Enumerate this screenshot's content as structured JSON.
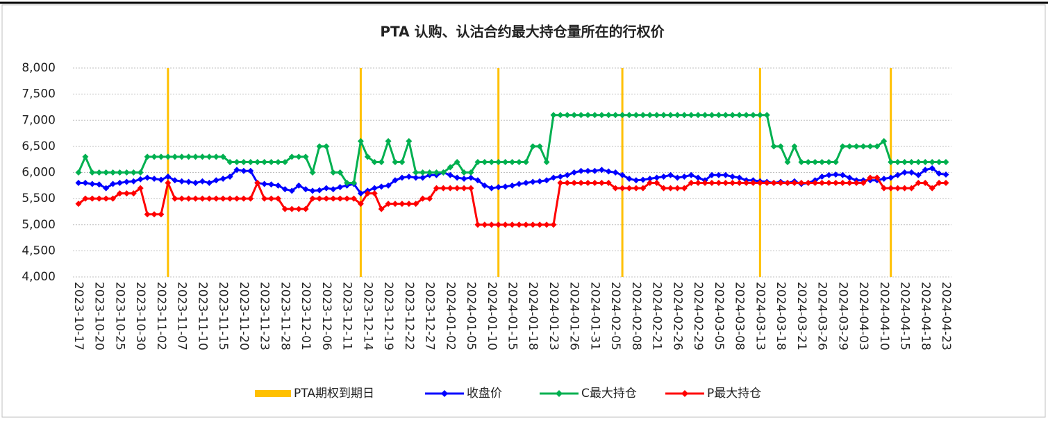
{
  "chart_data": {
    "type": "line",
    "title": "PTA 认购、认沽合约最大持仓量所在的行权价",
    "categories": [
      "2023-10-17",
      null,
      null,
      "2023-10-20",
      null,
      null,
      "2023-10-25",
      null,
      null,
      "2023-10-30",
      null,
      null,
      "2023-11-02",
      null,
      null,
      "2023-11-07",
      null,
      null,
      "2023-11-10",
      null,
      null,
      "2023-11-15",
      null,
      null,
      "2023-11-20",
      null,
      null,
      "2023-11-23",
      null,
      null,
      "2023-11-28",
      null,
      null,
      "2023-12-01",
      null,
      null,
      "2023-12-06",
      null,
      null,
      "2023-12-11",
      null,
      null,
      "2023-12-14",
      null,
      null,
      "2023-12-19",
      null,
      null,
      "2023-12-22",
      null,
      null,
      "2023-12-27",
      null,
      null,
      "2024-01-02",
      null,
      null,
      "2024-01-05",
      null,
      null,
      "2024-01-10",
      null,
      null,
      "2024-01-15",
      null,
      null,
      "2024-01-18",
      null,
      null,
      "2024-01-23",
      null,
      null,
      "2024-01-26",
      null,
      null,
      "2024-01-31",
      null,
      null,
      "2024-02-05",
      null,
      null,
      "2024-02-08",
      null,
      null,
      "2024-02-21",
      null,
      null,
      "2024-02-26",
      null,
      null,
      "2024-02-29",
      null,
      null,
      "2024-03-05",
      null,
      null,
      "2024-03-08",
      null,
      null,
      "2024-03-13",
      null,
      null,
      "2024-03-18",
      null,
      null,
      "2024-03-21",
      null,
      null,
      "2024-03-26",
      null,
      null,
      "2024-03-29",
      null,
      null,
      "2024-04-03",
      null,
      null,
      "2024-04-10",
      null,
      null,
      "2024-04-15",
      null,
      null,
      "2024-04-18",
      null,
      null,
      "2024-04-23"
    ],
    "series": [
      {
        "name": "PTA期权到期日",
        "type": "bar",
        "color": "#ffc000",
        "values": [
          null,
          null,
          null,
          null,
          null,
          null,
          null,
          null,
          null,
          null,
          null,
          null,
          null,
          8000,
          null,
          null,
          null,
          null,
          null,
          null,
          null,
          null,
          null,
          null,
          null,
          null,
          null,
          null,
          null,
          null,
          null,
          null,
          null,
          null,
          null,
          null,
          null,
          null,
          null,
          null,
          null,
          8000,
          null,
          null,
          null,
          null,
          null,
          null,
          null,
          null,
          null,
          null,
          null,
          null,
          null,
          null,
          null,
          null,
          null,
          null,
          null,
          8000,
          null,
          null,
          null,
          null,
          null,
          null,
          null,
          null,
          null,
          null,
          null,
          null,
          null,
          null,
          null,
          null,
          null,
          8000,
          null,
          null,
          null,
          null,
          null,
          null,
          null,
          null,
          null,
          null,
          null,
          null,
          null,
          null,
          null,
          null,
          null,
          null,
          null,
          8000,
          null,
          null,
          null,
          null,
          null,
          null,
          null,
          null,
          null,
          null,
          null,
          null,
          null,
          null,
          null,
          null,
          null,
          null,
          8000,
          null,
          null,
          null,
          null,
          null,
          null,
          null,
          null
        ]
      },
      {
        "name": "收盘价",
        "type": "line",
        "color": "#0000ff",
        "values": [
          5800,
          5800,
          5780,
          5770,
          5700,
          5780,
          5800,
          5820,
          5830,
          5870,
          5900,
          5880,
          5860,
          5920,
          5850,
          5830,
          5820,
          5800,
          5830,
          5800,
          5850,
          5880,
          5920,
          6050,
          6030,
          6030,
          5800,
          5780,
          5770,
          5750,
          5680,
          5650,
          5750,
          5680,
          5650,
          5660,
          5700,
          5680,
          5720,
          5750,
          5780,
          5600,
          5650,
          5700,
          5730,
          5750,
          5850,
          5900,
          5920,
          5900,
          5900,
          5950,
          5950,
          6000,
          5950,
          5900,
          5880,
          5900,
          5850,
          5750,
          5700,
          5720,
          5730,
          5750,
          5780,
          5800,
          5820,
          5830,
          5850,
          5900,
          5920,
          5950,
          6000,
          6030,
          6030,
          6030,
          6050,
          6020,
          6000,
          5950,
          5880,
          5850,
          5860,
          5880,
          5900,
          5920,
          5950,
          5900,
          5920,
          5950,
          5900,
          5850,
          5950,
          5950,
          5950,
          5920,
          5900,
          5850,
          5850,
          5830,
          5820,
          5800,
          5820,
          5800,
          5830,
          5780,
          5800,
          5850,
          5920,
          5950,
          5960,
          5950,
          5900,
          5850,
          5850,
          5850,
          5850,
          5880,
          5900,
          5950,
          6000,
          6000,
          5950,
          6050,
          6080,
          5980,
          5960
        ]
      },
      {
        "name": "C最大持仓",
        "type": "line",
        "color": "#00b050",
        "values": [
          6000,
          6300,
          6000,
          6000,
          6000,
          6000,
          6000,
          6000,
          6000,
          6000,
          6300,
          6300,
          6300,
          6300,
          6300,
          6300,
          6300,
          6300,
          6300,
          6300,
          6300,
          6300,
          6200,
          6200,
          6200,
          6200,
          6200,
          6200,
          6200,
          6200,
          6200,
          6300,
          6300,
          6300,
          6000,
          6500,
          6500,
          6000,
          6000,
          5800,
          5800,
          6600,
          6300,
          6200,
          6200,
          6600,
          6200,
          6200,
          6600,
          6000,
          6000,
          6000,
          6000,
          6000,
          6100,
          6200,
          6000,
          6000,
          6200,
          6200,
          6200,
          6200,
          6200,
          6200,
          6200,
          6200,
          6500,
          6500,
          6200,
          7100,
          7100,
          7100,
          7100,
          7100,
          7100,
          7100,
          7100,
          7100,
          7100,
          7100,
          7100,
          7100,
          7100,
          7100,
          7100,
          7100,
          7100,
          7100,
          7100,
          7100,
          7100,
          7100,
          7100,
          7100,
          7100,
          7100,
          7100,
          7100,
          7100,
          7100,
          7100,
          6500,
          6500,
          6200,
          6500,
          6200,
          6200,
          6200,
          6200,
          6200,
          6200,
          6500,
          6500,
          6500,
          6500,
          6500,
          6500,
          6600,
          6200,
          6200,
          6200,
          6200,
          6200,
          6200,
          6200,
          6200,
          6200
        ]
      },
      {
        "name": "P最大持仓",
        "type": "line",
        "color": "#ff0000",
        "values": [
          5400,
          5500,
          5500,
          5500,
          5500,
          5500,
          5600,
          5600,
          5600,
          5700,
          5200,
          5200,
          5200,
          5800,
          5500,
          5500,
          5500,
          5500,
          5500,
          5500,
          5500,
          5500,
          5500,
          5500,
          5500,
          5500,
          5800,
          5500,
          5500,
          5500,
          5300,
          5300,
          5300,
          5300,
          5500,
          5500,
          5500,
          5500,
          5500,
          5500,
          5500,
          5400,
          5600,
          5600,
          5300,
          5400,
          5400,
          5400,
          5400,
          5400,
          5500,
          5500,
          5700,
          5700,
          5700,
          5700,
          5700,
          5700,
          5000,
          5000,
          5000,
          5000,
          5000,
          5000,
          5000,
          5000,
          5000,
          5000,
          5000,
          5000,
          5800,
          5800,
          5800,
          5800,
          5800,
          5800,
          5800,
          5800,
          5700,
          5700,
          5700,
          5700,
          5700,
          5800,
          5800,
          5700,
          5700,
          5700,
          5700,
          5800,
          5800,
          5800,
          5800,
          5800,
          5800,
          5800,
          5800,
          5800,
          5800,
          5800,
          5800,
          5800,
          5800,
          5800,
          5800,
          5800,
          5800,
          5800,
          5800,
          5800,
          5800,
          5800,
          5800,
          5800,
          5800,
          5900,
          5900,
          5700,
          5700,
          5700,
          5700,
          5700,
          5800,
          5800,
          5700,
          5800,
          5800
        ]
      }
    ],
    "ylim": [
      4000,
      8000
    ],
    "yticks": [
      {
        "value": 4000,
        "label": "4,000"
      },
      {
        "value": 4500,
        "label": "4,500"
      },
      {
        "value": 5000,
        "label": "5,000"
      },
      {
        "value": 5500,
        "label": "5,500"
      },
      {
        "value": 6000,
        "label": "6,000"
      },
      {
        "value": 6500,
        "label": "6,500"
      },
      {
        "value": 7000,
        "label": "7,000"
      },
      {
        "value": 7500,
        "label": "7,500"
      },
      {
        "value": 8000,
        "label": "8,000"
      }
    ],
    "grid": true,
    "legend": "bottom"
  }
}
